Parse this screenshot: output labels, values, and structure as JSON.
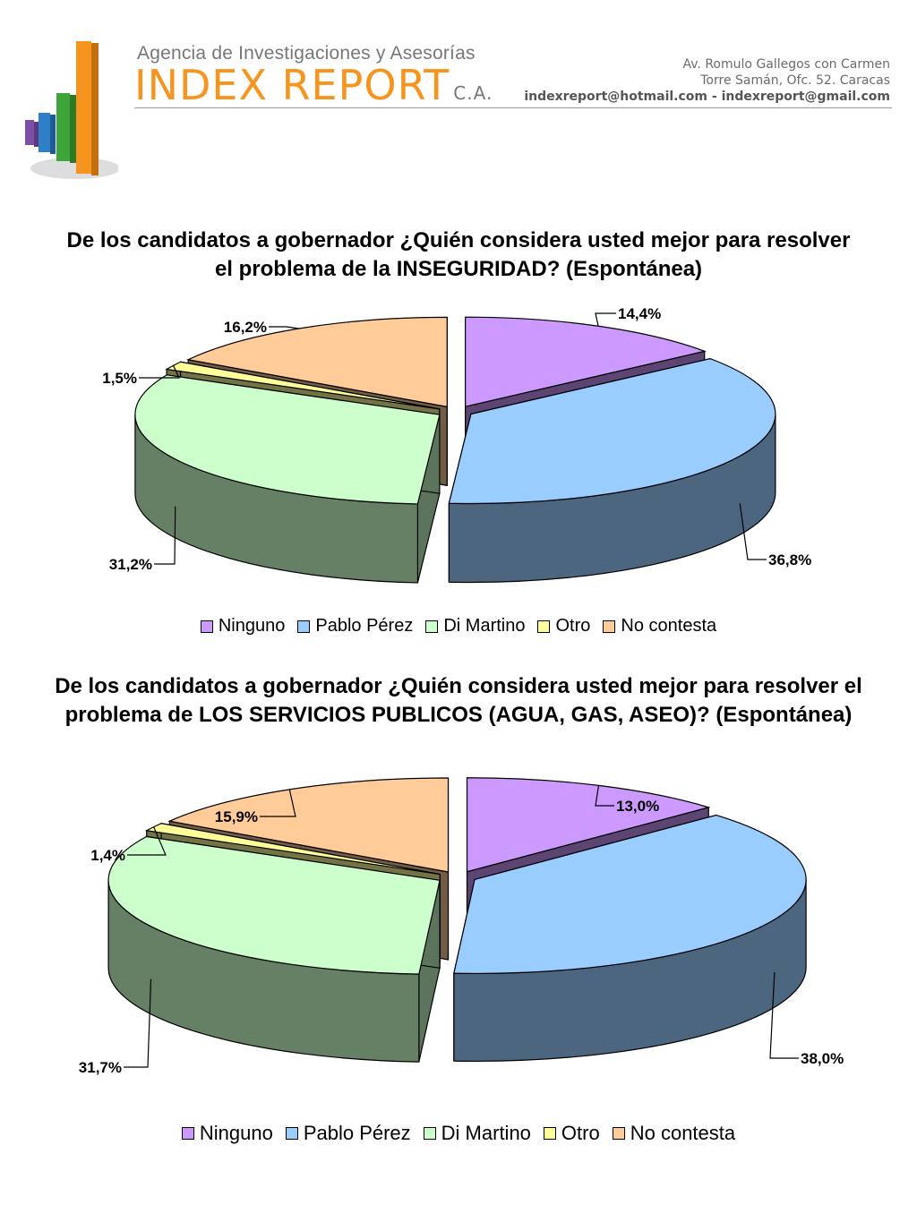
{
  "header": {
    "agency": "Agencia de Investigaciones y Asesorías",
    "brand": "INDEX REPORT",
    "brand_suffix": "C.A.",
    "address_line1": "Av. Romulo Gallegos con Carmen",
    "address_line2": "Torre Samán, Ofc. 52. Caracas",
    "emails": "indexreport@hotmail.com  -  indexreport@gmail.com",
    "logo_colors": [
      "#7b4fa3",
      "#2f7fc8",
      "#3ea53a",
      "#f7941d"
    ]
  },
  "legend": {
    "items": [
      "Ninguno",
      "Pablo Pérez",
      "Di Martino",
      "Otro",
      "No contesta"
    ],
    "colors": [
      "#cc99ff",
      "#99ccff",
      "#ccffcc",
      "#ffff99",
      "#ffcc99"
    ]
  },
  "chart_data": [
    {
      "type": "pie",
      "title": "De los candidatos a gobernador ¿Quién considera usted mejor para resolver el problema de la INSEGURIDAD? (Espontánea)",
      "categories": [
        "Ninguno",
        "Pablo Pérez",
        "Di Martino",
        "Otro",
        "No contesta"
      ],
      "values": [
        14.4,
        36.8,
        31.2,
        1.5,
        16.2
      ],
      "labels": [
        "14,4%",
        "36,8%",
        "31,2%",
        "1,5%",
        "16,2%"
      ],
      "legend_position": "bottom",
      "style": "3d-exploded"
    },
    {
      "type": "pie",
      "title": "De los candidatos a gobernador ¿Quién considera usted mejor para resolver el problema de LOS SERVICIOS PUBLICOS (AGUA, GAS, ASEO)? (Espontánea)",
      "categories": [
        "Ninguno",
        "Pablo Pérez",
        "Di Martino",
        "Otro",
        "No contesta"
      ],
      "values": [
        13.0,
        38.0,
        31.7,
        1.4,
        15.9
      ],
      "labels": [
        "13,0%",
        "38,0%",
        "31,7%",
        "1,4%",
        "15,9%"
      ],
      "legend_position": "bottom",
      "style": "3d-exploded"
    }
  ]
}
